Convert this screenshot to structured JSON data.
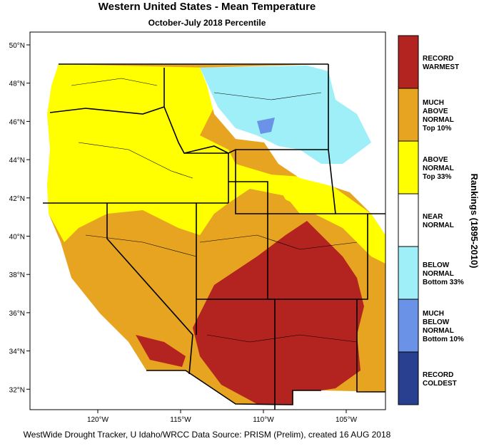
{
  "header": {
    "title": "Western United States - Mean Temperature",
    "subtitle": "October-July 2018 Percentile"
  },
  "map": {
    "lat_labels": [
      "50°N",
      "48°N",
      "46°N",
      "44°N",
      "42°N",
      "40°N",
      "38°N",
      "36°N",
      "34°N",
      "32°N"
    ],
    "lon_labels": [
      "120°W",
      "115°W",
      "110°W",
      "105°W"
    ]
  },
  "legend": {
    "title": "Rankings (1895-2010)",
    "items": [
      {
        "lines": [
          "RECORD",
          "WARMEST"
        ],
        "color": "#b32320"
      },
      {
        "lines": [
          "MUCH",
          "ABOVE",
          "NORMAL",
          "Top 10%"
        ],
        "color": "#e6a420"
      },
      {
        "lines": [
          "ABOVE",
          "NORMAL",
          "Top 33%"
        ],
        "color": "#ffff00"
      },
      {
        "lines": [
          "NEAR",
          "NORMAL"
        ],
        "color": "#ffffff"
      },
      {
        "lines": [
          "BELOW",
          "NORMAL",
          "Bottom 33%"
        ],
        "color": "#9eeff8"
      },
      {
        "lines": [
          "MUCH",
          "BELOW",
          "NORMAL",
          "Bottom 10%"
        ],
        "color": "#6a92e6"
      },
      {
        "lines": [
          "RECORD",
          "COLDEST"
        ],
        "color": "#293f8f"
      }
    ]
  },
  "footer": {
    "credit": "WestWide Drought Tracker, U Idaho/WRCC Data Source: PRISM (Prelim), created 16 AUG 2018"
  }
}
